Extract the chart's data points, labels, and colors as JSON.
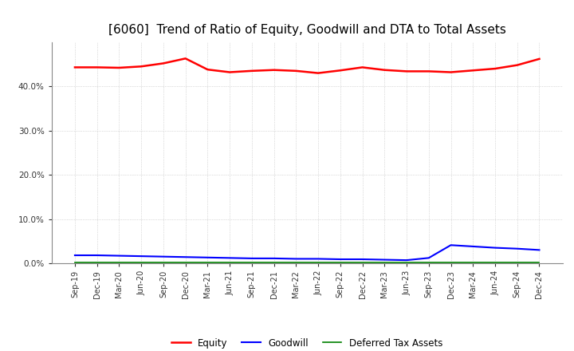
{
  "title": "[6060]  Trend of Ratio of Equity, Goodwill and DTA to Total Assets",
  "x_labels": [
    "Sep-19",
    "Dec-19",
    "Mar-20",
    "Jun-20",
    "Sep-20",
    "Dec-20",
    "Mar-21",
    "Jun-21",
    "Sep-21",
    "Dec-21",
    "Mar-22",
    "Jun-22",
    "Sep-22",
    "Dec-22",
    "Mar-23",
    "Jun-23",
    "Sep-23",
    "Dec-23",
    "Mar-24",
    "Jun-24",
    "Sep-24",
    "Dec-24"
  ],
  "equity": [
    0.443,
    0.443,
    0.442,
    0.445,
    0.452,
    0.463,
    0.438,
    0.432,
    0.435,
    0.437,
    0.435,
    0.43,
    0.436,
    0.443,
    0.437,
    0.434,
    0.434,
    0.432,
    0.436,
    0.44,
    0.448,
    0.462
  ],
  "goodwill": [
    0.018,
    0.018,
    0.017,
    0.016,
    0.015,
    0.014,
    0.013,
    0.012,
    0.011,
    0.011,
    0.01,
    0.01,
    0.009,
    0.009,
    0.008,
    0.007,
    0.012,
    0.041,
    0.038,
    0.035,
    0.033,
    0.03
  ],
  "dta": [
    0.002,
    0.002,
    0.002,
    0.002,
    0.002,
    0.002,
    0.002,
    0.002,
    0.002,
    0.002,
    0.002,
    0.002,
    0.002,
    0.002,
    0.002,
    0.002,
    0.002,
    0.002,
    0.002,
    0.002,
    0.002,
    0.002
  ],
  "equity_color": "#FF0000",
  "goodwill_color": "#0000FF",
  "dta_color": "#008000",
  "background_color": "#FFFFFF",
  "grid_color": "#AAAAAA",
  "ylim": [
    0.0,
    0.5
  ],
  "yticks": [
    0.0,
    0.1,
    0.2,
    0.3,
    0.4
  ],
  "legend_labels": [
    "Equity",
    "Goodwill",
    "Deferred Tax Assets"
  ],
  "title_fontsize": 11,
  "tick_fontsize": 7,
  "legend_fontsize": 8.5
}
